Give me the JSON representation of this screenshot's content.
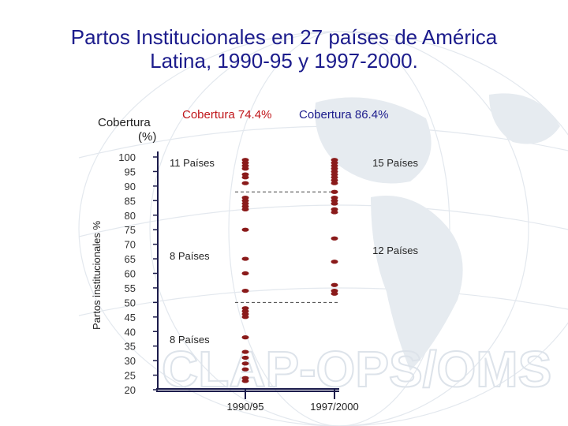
{
  "title_line1": "Partos Institucionales en 27 países de América",
  "title_line2": "Latina, 1990-95 y 1997-2000.",
  "header": {
    "coverage_label_line1": "Cobertura",
    "coverage_label_line2": "(%)",
    "coverage_1990": "Cobertura 74.4%",
    "coverage_1997": "Cobertura 86.4%"
  },
  "watermark": "CLAP-OPS/OMS",
  "colors": {
    "title": "#1c1c8c",
    "dots": "#8a1a1a",
    "red_text": "#c0161a",
    "axis": "#1a1a4a"
  },
  "chart_data": {
    "type": "scatter",
    "ylabel": "Partos institucionales  %",
    "ylim": [
      20,
      100
    ],
    "yticks": [
      100,
      95,
      90,
      85,
      80,
      75,
      70,
      65,
      60,
      55,
      50,
      45,
      40,
      35,
      30,
      25,
      20
    ],
    "categories": [
      "1990/95",
      "1997/2000"
    ],
    "series": [
      {
        "category": "1990/95",
        "values": [
          99,
          98,
          97,
          96,
          94,
          93,
          91,
          86,
          85,
          84,
          83,
          82,
          75,
          65,
          60,
          54,
          48,
          47,
          46,
          45,
          38,
          33,
          31,
          29,
          27,
          24,
          23
        ]
      },
      {
        "category": "1997/2000",
        "values": [
          99,
          98,
          97,
          96,
          95,
          94,
          93,
          92,
          91,
          88,
          86,
          85,
          84,
          82,
          81,
          72,
          64,
          56,
          54,
          53
        ]
      }
    ],
    "thresholds": [
      {
        "value": 88
      },
      {
        "value": 50
      }
    ],
    "annotations": [
      "11 Países",
      "15 Países",
      "8 Países",
      "12 Países",
      "8 Países"
    ]
  }
}
